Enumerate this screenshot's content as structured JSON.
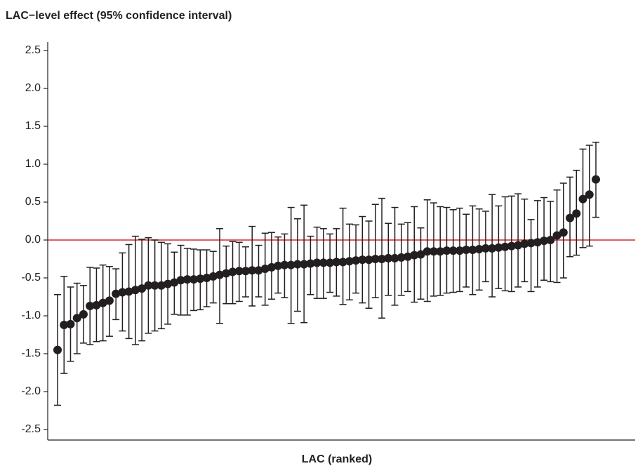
{
  "chart_data": {
    "type": "errorbar",
    "title": "LAC−level effect (95% confidence interval)",
    "xlabel": "LAC (ranked)",
    "color": "#231f20",
    "refline": {
      "value": 0,
      "color": "#d7282f"
    },
    "ylim": [
      -2.6,
      2.6
    ],
    "yticks": [
      {
        "value": -2.5,
        "label": "-2.5"
      },
      {
        "value": -2.0,
        "label": "-2.0"
      },
      {
        "value": -1.5,
        "label": "-1.5"
      },
      {
        "value": -1.0,
        "label": "-1.0"
      },
      {
        "value": -0.5,
        "label": "-0.5"
      },
      {
        "value": 0,
        "label": "0.0"
      },
      0.5,
      {
        "value": 1.0,
        "label": "1.0"
      },
      1.5,
      {
        "value": 2.0,
        "label": "2.0"
      },
      2.5
    ],
    "values": [
      -1.45,
      -1.12,
      -1.11,
      -1.03,
      -0.98,
      -0.87,
      -0.86,
      -0.83,
      -0.8,
      -0.71,
      -0.69,
      -0.68,
      -0.66,
      -0.64,
      -0.6,
      -0.6,
      -0.6,
      -0.58,
      -0.56,
      -0.53,
      -0.52,
      -0.52,
      -0.51,
      -0.5,
      -0.48,
      -0.46,
      -0.44,
      -0.42,
      -0.41,
      -0.41,
      -0.4,
      -0.4,
      -0.38,
      -0.36,
      -0.34,
      -0.33,
      -0.33,
      -0.32,
      -0.32,
      -0.31,
      -0.3,
      -0.3,
      -0.3,
      -0.29,
      -0.29,
      -0.28,
      -0.27,
      -0.26,
      -0.26,
      -0.25,
      -0.25,
      -0.24,
      -0.24,
      -0.23,
      -0.22,
      -0.2,
      -0.19,
      -0.15,
      -0.15,
      -0.15,
      -0.14,
      -0.14,
      -0.14,
      -0.13,
      -0.13,
      -0.12,
      -0.11,
      -0.11,
      -0.1,
      -0.09,
      -0.08,
      -0.07,
      -0.05,
      -0.04,
      -0.03,
      -0.01,
      0.0,
      0.06,
      0.1,
      0.29,
      0.35,
      0.54,
      0.6,
      0.8
    ],
    "lower": [
      -2.18,
      -1.76,
      -1.6,
      -1.5,
      -1.36,
      -1.38,
      -1.34,
      -1.33,
      -1.27,
      -1.05,
      -1.2,
      -1.3,
      -1.38,
      -1.33,
      -1.23,
      -1.2,
      -1.17,
      -1.11,
      -0.98,
      -0.99,
      -0.99,
      -0.93,
      -0.92,
      -0.88,
      -0.83,
      -1.1,
      -0.84,
      -0.84,
      -0.81,
      -0.75,
      -0.87,
      -0.75,
      -0.86,
      -0.78,
      -0.7,
      -0.76,
      -1.1,
      -0.94,
      -1.09,
      -0.72,
      -0.77,
      -0.77,
      -0.69,
      -0.74,
      -0.85,
      -0.79,
      -0.7,
      -0.83,
      -0.9,
      -0.76,
      -1.03,
      -0.73,
      -0.86,
      -0.73,
      -0.68,
      -0.82,
      -0.78,
      -0.81,
      -0.74,
      -0.73,
      -0.7,
      -0.69,
      -0.68,
      -0.62,
      -0.72,
      -0.66,
      -0.55,
      -0.75,
      -0.64,
      -0.67,
      -0.68,
      -0.62,
      -0.55,
      -0.68,
      -0.62,
      -0.53,
      -0.55,
      -0.56,
      -0.5,
      -0.22,
      -0.2,
      -0.1,
      -0.08,
      0.3
    ],
    "upper": [
      -0.72,
      -0.48,
      -0.62,
      -0.57,
      -0.6,
      -0.36,
      -0.37,
      -0.33,
      -0.35,
      -0.38,
      -0.17,
      -0.06,
      0.05,
      0.01,
      0.03,
      0.0,
      -0.03,
      -0.05,
      -0.16,
      -0.07,
      -0.11,
      -0.12,
      -0.13,
      -0.13,
      -0.15,
      0.15,
      -0.08,
      -0.02,
      -0.03,
      -0.09,
      0.18,
      -0.07,
      0.09,
      0.1,
      0.04,
      0.08,
      0.43,
      0.28,
      0.46,
      0.05,
      0.17,
      0.15,
      0.08,
      0.15,
      0.42,
      0.21,
      0.2,
      0.31,
      0.25,
      0.47,
      0.55,
      0.22,
      0.43,
      0.21,
      0.23,
      0.44,
      0.16,
      0.53,
      0.49,
      0.44,
      0.43,
      0.4,
      0.42,
      0.34,
      0.45,
      0.41,
      0.38,
      0.6,
      0.45,
      0.57,
      0.58,
      0.61,
      0.54,
      0.27,
      0.52,
      0.56,
      0.51,
      0.66,
      0.75,
      0.83,
      0.92,
      1.2,
      1.25,
      1.29
    ]
  }
}
